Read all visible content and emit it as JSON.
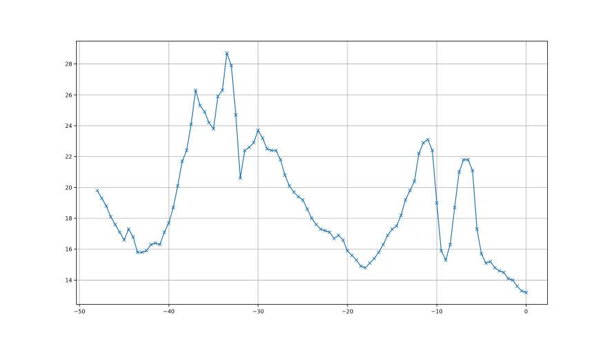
{
  "chart_data": {
    "type": "line",
    "title": "",
    "xlabel": "",
    "ylabel": "",
    "xlim": [
      -50.35,
      2.4
    ],
    "ylim": [
      12.43,
      29.48
    ],
    "grid": true,
    "color": "#1f77b4",
    "marker": "x",
    "xticks": [
      -50,
      -40,
      -30,
      -20,
      -10,
      0
    ],
    "yticks": [
      14,
      16,
      18,
      20,
      22,
      24,
      26,
      28
    ],
    "x": [
      -48,
      -47.5,
      -47,
      -46.5,
      -46,
      -45.5,
      -45,
      -44.5,
      -44,
      -43.5,
      -43,
      -42.5,
      -42,
      -41.5,
      -41,
      -40.5,
      -40,
      -39.5,
      -39,
      -38.5,
      -38,
      -37.5,
      -37,
      -36.5,
      -36,
      -35.5,
      -35,
      -34.5,
      -34,
      -33.5,
      -33,
      -32.5,
      -32,
      -31.5,
      -31,
      -30.5,
      -30,
      -29.5,
      -29,
      -28.5,
      -28,
      -27.5,
      -27,
      -26.5,
      -26,
      -25.5,
      -25,
      -24.5,
      -24,
      -23.5,
      -23,
      -22.5,
      -22,
      -21.5,
      -21,
      -20.5,
      -20,
      -19.5,
      -19,
      -18.5,
      -18,
      -17.5,
      -17,
      -16.5,
      -16,
      -15.5,
      -15,
      -14.5,
      -14,
      -13.5,
      -13,
      -12.5,
      -12,
      -11.5,
      -11,
      -10.5,
      -10,
      -9.5,
      -9,
      -8.5,
      -8,
      -7.5,
      -7,
      -6.5,
      -6,
      -5.5,
      -5,
      -4.5,
      -4,
      -3.5,
      -3,
      -2.5,
      -2,
      -1.5,
      -1,
      -0.5,
      0
    ],
    "y": [
      19.8,
      19.3,
      18.8,
      18.1,
      17.6,
      17.1,
      16.6,
      17.3,
      16.8,
      15.8,
      15.8,
      15.9,
      16.3,
      16.4,
      16.3,
      17.1,
      17.7,
      18.7,
      20.1,
      21.7,
      22.4,
      24.1,
      26.3,
      25.3,
      24.9,
      24.2,
      23.8,
      25.9,
      26.3,
      28.7,
      27.9,
      24.7,
      20.6,
      22.4,
      22.6,
      22.9,
      23.7,
      23.2,
      22.5,
      22.4,
      22.4,
      21.8,
      20.8,
      20.1,
      19.7,
      19.4,
      19.2,
      18.6,
      18.0,
      17.6,
      17.3,
      17.2,
      17.1,
      16.7,
      16.9,
      16.6,
      15.9,
      15.6,
      15.3,
      14.9,
      14.8,
      15.1,
      15.4,
      15.8,
      16.3,
      16.9,
      17.3,
      17.5,
      18.2,
      19.2,
      19.8,
      20.4,
      22.2,
      22.9,
      23.1,
      22.4,
      19.0,
      15.9,
      15.3,
      16.3,
      18.7,
      21.0,
      21.8,
      21.8,
      21.1,
      17.3,
      15.7,
      15.1,
      15.2,
      14.8,
      14.6,
      14.5,
      14.1,
      14.0,
      13.6,
      13.3,
      13.2
    ]
  }
}
